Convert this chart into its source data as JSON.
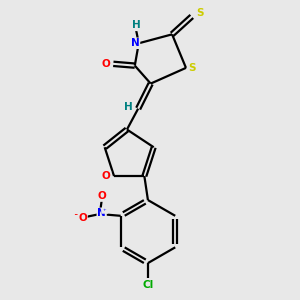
{
  "bg_color": "#e8e8e8",
  "bond_color": "#000000",
  "atom_colors": {
    "O": "#ff0000",
    "N": "#0000ff",
    "S": "#cccc00",
    "Cl": "#00aa00",
    "H": "#008080",
    "C": "#000000"
  },
  "lw": 1.6
}
